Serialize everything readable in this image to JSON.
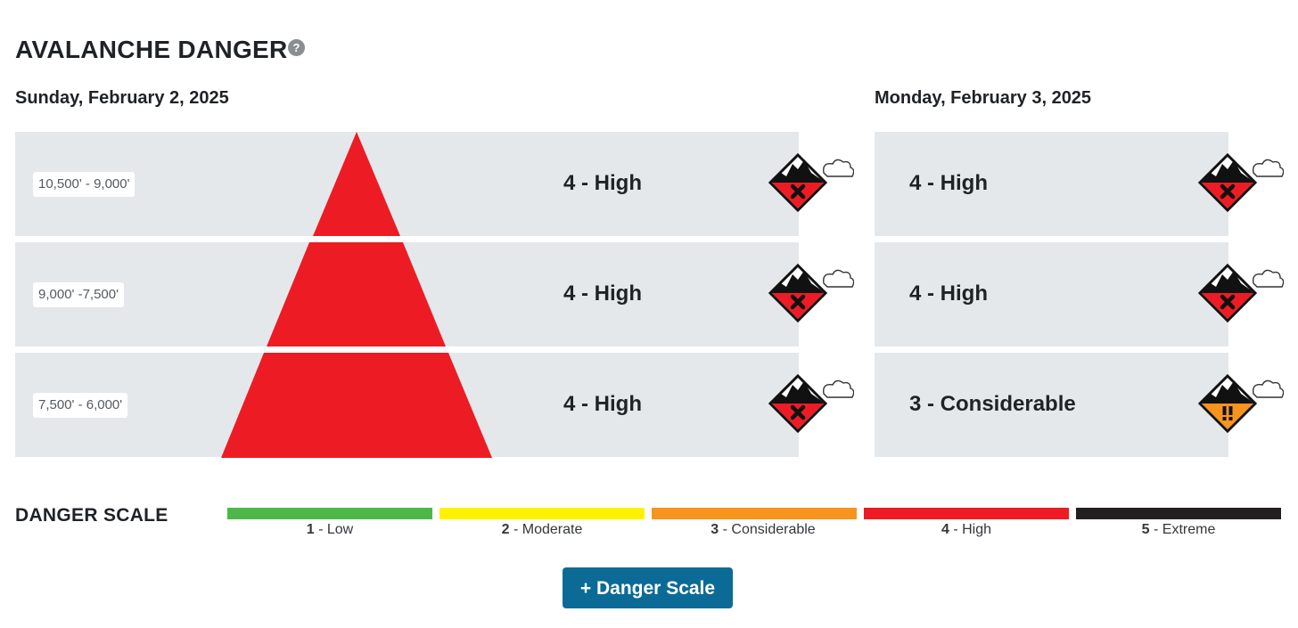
{
  "header": {
    "title": "AVALANCHE DANGER",
    "help_glyph": "?"
  },
  "day1": {
    "date": "Sunday, February 2, 2025",
    "bands": [
      {
        "elevation": "10,500' - 9,000'",
        "rating": "4 - High",
        "level": 4,
        "icon": "danger-level-4-icon"
      },
      {
        "elevation": "9,000' -7,500'",
        "rating": "4 - High",
        "level": 4,
        "icon": "danger-level-4-icon"
      },
      {
        "elevation": "7,500' - 6,000'",
        "rating": "4 - High",
        "level": 4,
        "icon": "danger-level-4-icon"
      }
    ]
  },
  "day2": {
    "date": "Monday, February 3, 2025",
    "bands": [
      {
        "rating": "4 - High",
        "level": 4,
        "icon": "danger-level-4-icon"
      },
      {
        "rating": "4 - High",
        "level": 4,
        "icon": "danger-level-4-icon"
      },
      {
        "rating": "3 - Considerable",
        "level": 3,
        "icon": "danger-level-3-icon"
      }
    ]
  },
  "scale": {
    "title": "DANGER SCALE",
    "levels": [
      {
        "num": "1",
        "name": " - Low",
        "color": "#4db848"
      },
      {
        "num": "2",
        "name": " - Moderate",
        "color": "#fff200"
      },
      {
        "num": "3",
        "name": " - Considerable",
        "color": "#f7941e"
      },
      {
        "num": "4",
        "name": " - High",
        "color": "#ed1c24"
      },
      {
        "num": "5",
        "name": " - Extreme",
        "color": "#231f20"
      }
    ]
  },
  "button": {
    "label": "+ Danger Scale"
  },
  "colors": {
    "band_bg": "#e4e8eb",
    "high": "#ed1c24",
    "considerable": "#f7941e",
    "button": "#0b6b96"
  }
}
